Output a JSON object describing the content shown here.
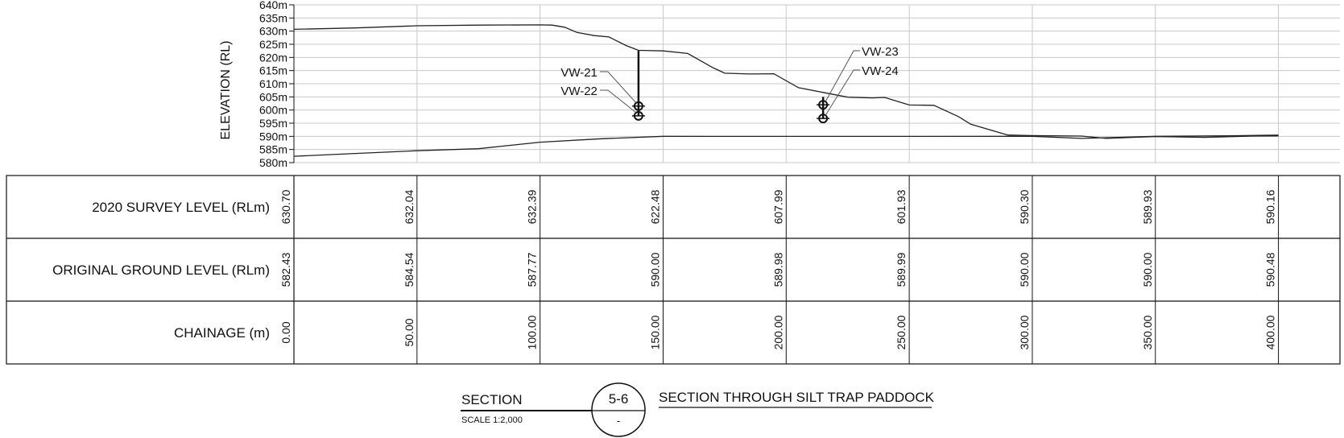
{
  "chart_data": {
    "type": "line",
    "ylabel": "ELEVATION (RL)",
    "y_unit": "m",
    "ylim": [
      580,
      640
    ],
    "y_ticks": [
      580,
      585,
      590,
      595,
      600,
      605,
      610,
      615,
      620,
      625,
      630,
      635,
      640
    ],
    "xlim": [
      0,
      400
    ],
    "grid": true,
    "series": [
      {
        "name": "2020 SURVEY LEVEL (RLm)",
        "x": [
          0,
          25,
          50,
          75,
          100,
          105,
          110,
          115,
          122,
          128,
          135,
          140,
          150,
          160,
          170,
          175,
          185,
          195,
          205,
          215,
          225,
          235,
          240,
          250,
          260,
          270,
          275,
          290,
          300,
          320,
          330,
          350,
          370,
          390,
          400
        ],
        "values": [
          630.7,
          631.2,
          632.04,
          632.3,
          632.39,
          632.3,
          631.5,
          629.5,
          628.3,
          627.8,
          624.5,
          622.7,
          622.48,
          621.5,
          616.2,
          614.0,
          613.7,
          613.8,
          608.5,
          606.7,
          604.9,
          604.6,
          604.8,
          601.93,
          601.8,
          597.5,
          594.6,
          590.5,
          590.3,
          590.1,
          589.2,
          589.93,
          589.6,
          590.1,
          590.16
        ]
      },
      {
        "name": "ORIGINAL GROUND LEVEL (RLm)",
        "x": [
          0,
          25,
          50,
          75,
          100,
          125,
          150,
          200,
          250,
          300,
          320,
          350,
          380,
          400
        ],
        "values": [
          582.43,
          583.5,
          584.54,
          585.3,
          587.77,
          589.1,
          590.0,
          589.98,
          589.99,
          590.0,
          589.2,
          590.0,
          590.2,
          590.48
        ]
      }
    ],
    "table": {
      "rows": [
        {
          "label": "2020 SURVEY LEVEL (RLm)",
          "values": [
            "630.70",
            "632.04",
            "632.39",
            "622.48",
            "607.99",
            "601.93",
            "590.30",
            "589.93",
            "590.16"
          ]
        },
        {
          "label": "ORIGINAL GROUND LEVEL (RLm)",
          "values": [
            "582.43",
            "584.54",
            "587.77",
            "590.00",
            "589.98",
            "589.99",
            "590.00",
            "590.00",
            "590.48"
          ]
        },
        {
          "label": "CHAINAGE (m)",
          "values": [
            "0.00",
            "50.00",
            "100.00",
            "150.00",
            "200.00",
            "250.00",
            "300.00",
            "350.00",
            "400.00"
          ]
        }
      ]
    },
    "instruments": [
      {
        "label": "VW-21",
        "x": 140,
        "elevation": 601.5,
        "hole_top": 622.5
      },
      {
        "label": "VW-22",
        "x": 140,
        "elevation": 597.8,
        "hole_top": 622.5
      },
      {
        "label": "VW-23",
        "x": 215,
        "elevation": 602.0,
        "hole_top": 605.0
      },
      {
        "label": "VW-24",
        "x": 215,
        "elevation": 596.8,
        "hole_top": 605.0
      }
    ]
  },
  "title_block": {
    "section_word": "SECTION",
    "scale": "SCALE 1:2,000",
    "section_id": "5-6",
    "sheet_ref": "-",
    "section_title": "SECTION THROUGH SILT TRAP PADDOCK"
  }
}
